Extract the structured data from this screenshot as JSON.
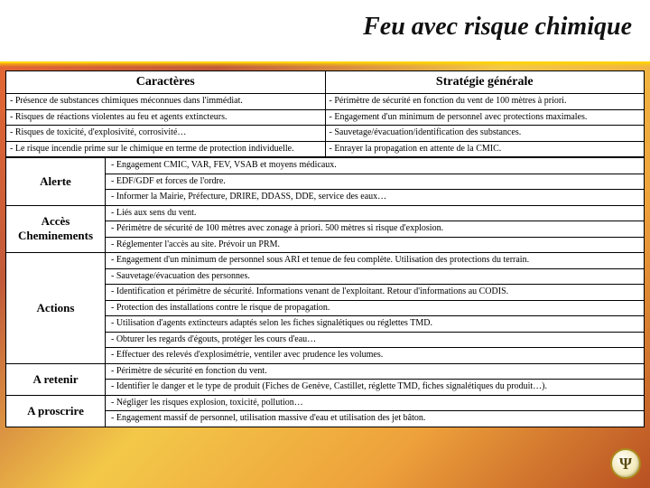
{
  "title": "Feu avec risque chimique",
  "headers": {
    "left": "Caractères",
    "right": "Stratégie générale"
  },
  "char_strat": [
    {
      "c": "- Présence de substances chimiques méconnues dans l'immédiat.",
      "s": "- Périmètre de sécurité en fonction du vent de 100 mètres à priori."
    },
    {
      "c": "- Risques de réactions violentes au feu et agents extincteurs.",
      "s": "- Engagement d'un minimum de personnel avec protections maximales."
    },
    {
      "c": "- Risques de toxicité, d'explosivité, corrosivité…",
      "s": "- Sauvetage/évacuation/identification des substances."
    },
    {
      "c": "- Le risque incendie prime sur le chimique en terme de protection individuelle.",
      "s": "- Enrayer la propagation en attente de la CMIC."
    }
  ],
  "sections": [
    {
      "label": "Alerte",
      "items": [
        "- Engagement CMIC, VAR, FEV, VSAB et moyens médicaux.",
        "- EDF/GDF et forces de l'ordre.",
        "- Informer la Mairie, Préfecture, DRIRE, DDASS, DDE, service des eaux…"
      ]
    },
    {
      "label": "Accès\nCheminements",
      "items": [
        "- Liés aux sens du vent.",
        "- Périmètre de sécurité de 100 mètres avec zonage à priori. 500 mètres si risque d'explosion.",
        "- Réglementer l'accès au site. Prévoir un PRM."
      ]
    },
    {
      "label": "Actions",
      "items": [
        "- Engagement d'un minimum de personnel sous ARI et tenue de feu complète. Utilisation des protections du terrain.",
        "- Sauvetage/évacuation des personnes.",
        "- Identification et périmètre de sécurité. Informations venant de l'exploitant. Retour d'informations au CODIS.",
        "- Protection des installations contre le risque de propagation.",
        "- Utilisation d'agents extincteurs adaptés selon les fiches signalétiques ou réglettes TMD.",
        "- Obturer les regards d'égouts, protéger les cours d'eau…",
        "- Effectuer des relevés d'explosimétrie, ventiler avec prudence les volumes."
      ]
    },
    {
      "label": "A retenir",
      "items": [
        "- Périmètre de sécurité en fonction du vent.",
        "- Identifier le danger et le type de produit (Fiches de Genève, Castillet, réglette TMD, fiches signalétiques du produit…)."
      ]
    },
    {
      "label": "A proscrire",
      "items": [
        "- Négliger les risques explosion, toxicité, pollution…",
        "- Engagement massif de personnel, utilisation massive d'eau et utilisation des jet bâton."
      ]
    }
  ],
  "corner_glyph": "Ψ"
}
